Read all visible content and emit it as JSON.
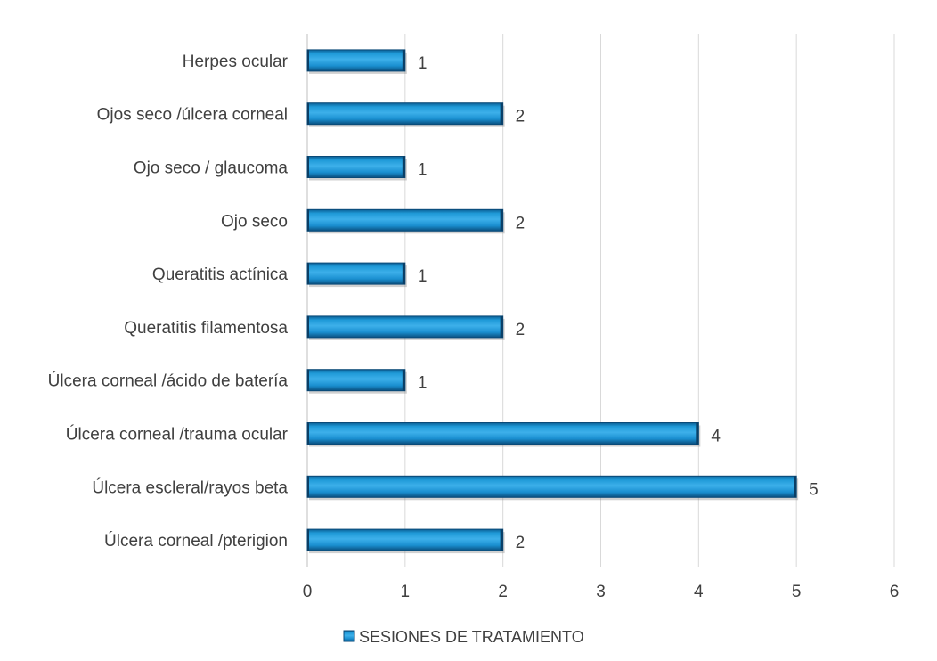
{
  "chart_data": {
    "type": "bar",
    "orientation": "horizontal",
    "categories": [
      "Herpes ocular",
      "Ojos seco /úlcera corneal",
      "Ojo seco / glaucoma",
      "Ojo seco",
      "Queratitis actínica",
      "Queratitis filamentosa",
      "Úlcera corneal /ácido de batería",
      "Úlcera corneal /trauma ocular",
      "Úlcera escleral/rayos beta",
      "Úlcera corneal /pterigion"
    ],
    "series": [
      {
        "name": "SESIONES DE TRATAMIENTO",
        "values": [
          1,
          2,
          1,
          2,
          1,
          2,
          1,
          4,
          5,
          2
        ],
        "color": "#1a8fd0"
      }
    ],
    "xlim": [
      0,
      6
    ],
    "xticks": [
      "0",
      "1",
      "2",
      "3",
      "4",
      "5",
      "6"
    ],
    "grid": "vertical",
    "legend": "bottom",
    "data_labels": true
  }
}
